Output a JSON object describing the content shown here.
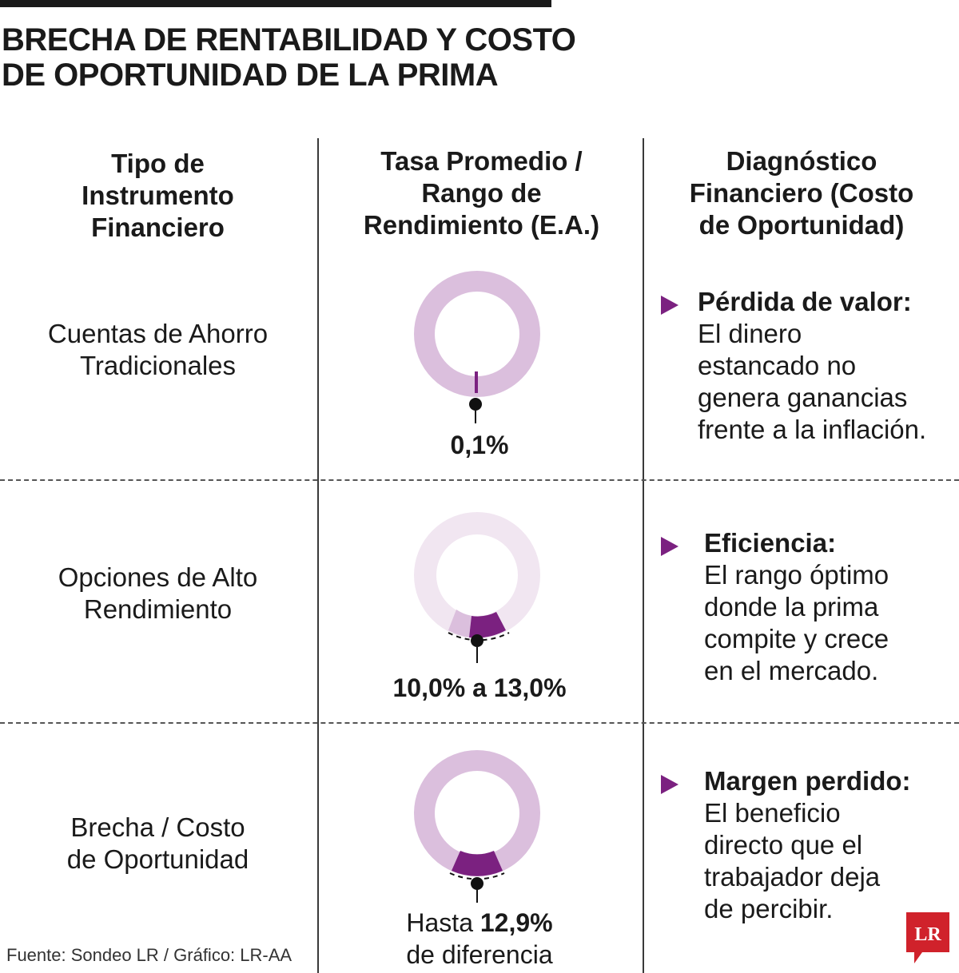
{
  "title": {
    "line1": "BRECHA DE RENTABILIDAD Y COSTO",
    "line2": "DE OPORTUNIDAD DE LA PRIMA"
  },
  "headers": {
    "col1": [
      "Tipo de",
      "Instrumento",
      "Financiero"
    ],
    "col2": [
      "Tasa Promedio /",
      "Rango de",
      "Rendimiento (E.A.)"
    ],
    "col3": [
      "Diagnóstico",
      "Financiero (Costo",
      "de Oportunidad)"
    ]
  },
  "rows": [
    {
      "instrument": [
        "Cuentas de Ahorro",
        "Tradicionales"
      ],
      "rate_text": "0,1%",
      "rate_percent": 0.1,
      "diag_title": "Pérdida de valor:",
      "diag_lines": [
        "El dinero",
        "estancado no",
        "genera ganancias",
        "frente a la inflación."
      ]
    },
    {
      "instrument": [
        "Opciones de Alto",
        "Rendimiento"
      ],
      "rate_text": "10,0% a 13,0%",
      "range_percent": [
        10.0,
        13.0
      ],
      "diag_title": "Eficiencia:",
      "diag_lines": [
        "El rango óptimo",
        "donde la prima",
        "compite y crece",
        "en el mercado."
      ]
    },
    {
      "instrument": [
        "Brecha / Costo",
        "de Oportunidad"
      ],
      "rate_prefix": "Hasta",
      "rate_bold": "12,9%",
      "rate_suffix": "de diferencia",
      "gap_percent": 12.9,
      "diag_title": "Margen perdido:",
      "diag_lines": [
        "El beneficio",
        "directo que el",
        "trabajador deja",
        "de percibir."
      ]
    }
  ],
  "source": "Fuente: Sondeo LR / Gráfico: LR-AA",
  "logo_text": "LR",
  "colors": {
    "accent": "#7b2180",
    "ring": "#dbbfdd",
    "ring_light": "#f1e6f1",
    "logo_red": "#d0222b",
    "text": "#1a1a1a"
  }
}
